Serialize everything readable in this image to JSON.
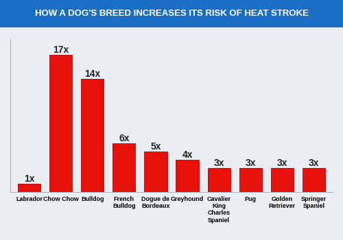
{
  "chart_data": {
    "type": "bar",
    "title": "HOW A DOG'S BREED INCREASES ITS RISK OF HEAT STROKE",
    "categories": [
      "Labrador",
      "Chow Chow",
      "Bulldog",
      "French Bulldog",
      "Dogue de Bordeaux",
      "Greyhound",
      "Cavalier King Charles Spaniel",
      "Pug",
      "Golden Retriever",
      "Springer Spaniel"
    ],
    "values": [
      1,
      17,
      14,
      6,
      5,
      4,
      3,
      3,
      3,
      3
    ],
    "value_labels": [
      "1x",
      "17x",
      "14x",
      "6x",
      "5x",
      "4x",
      "3x",
      "3x",
      "3x",
      "3x"
    ],
    "color": "#e8120c",
    "ylim": [
      0,
      19
    ],
    "yticks": [],
    "grid": false,
    "data_labels": true,
    "tick_labels": "x"
  }
}
